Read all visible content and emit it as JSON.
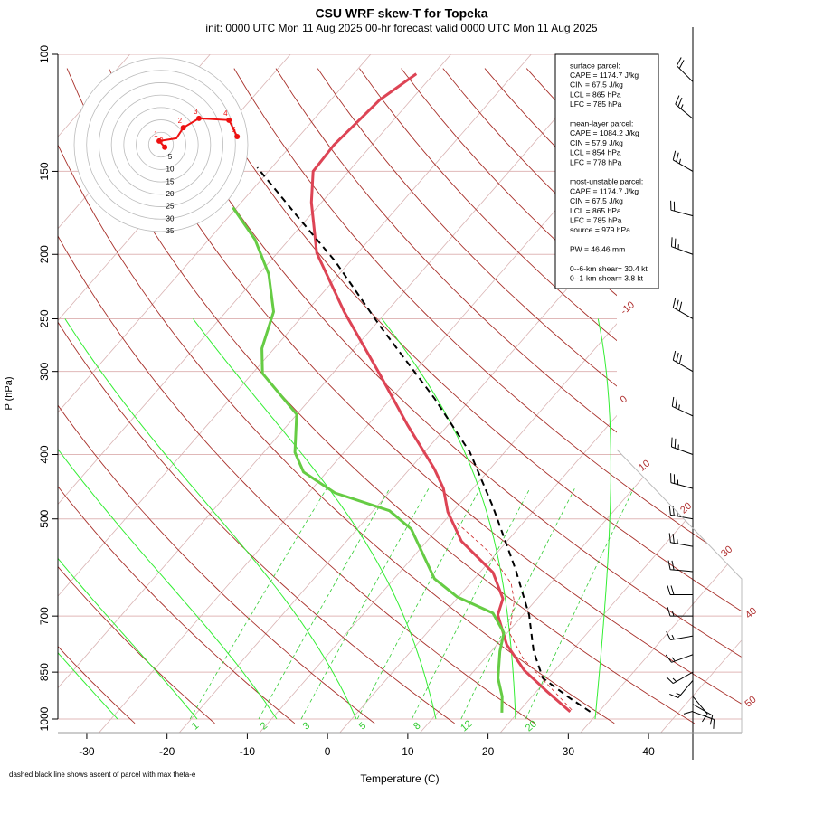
{
  "chart_data": {
    "type": "skewt",
    "title": "CSU WRF skew-T for Topeka",
    "subtitle": "init: 0000 UTC Mon 11 Aug 2025    00-hr forecast valid 0000 UTC Mon 11 Aug 2025",
    "x_label": "Temperature (C)",
    "y_label": "P (hPa)",
    "footnote": "dashed black line shows ascent of parcel with max theta-e",
    "xlim": [
      -33.6,
      51.6
    ],
    "xticks": [
      -30,
      -20,
      -10,
      0,
      10,
      20,
      30,
      40
    ],
    "ylim": [
      1000,
      100
    ],
    "yticks": [
      100,
      150,
      200,
      250,
      300,
      400,
      500,
      700,
      850,
      1000
    ],
    "log_y": true,
    "isotherm_labels": [
      -10,
      0,
      10,
      20,
      30,
      40,
      50
    ],
    "mixing_ratio_labels": [
      1,
      2,
      3,
      5,
      8,
      12,
      20
    ],
    "series": [
      {
        "color": "#dd4455",
        "dash": false,
        "width": 3,
        "pressure": [
          975,
          910,
          845,
          773,
          697,
          659,
          602,
          540,
          488,
          450,
          420,
          361,
          304,
          244,
          199,
          167,
          150,
          137,
          117,
          107
        ],
        "values": [
          29.4,
          24.3,
          19.0,
          13.9,
          9.4,
          8.2,
          4.0,
          -3.5,
          -8.5,
          -11.7,
          -15.1,
          -23.4,
          -32.4,
          -44.1,
          -54.2,
          -60.6,
          -63.9,
          -64.3,
          -63.7,
          -62.1
        ]
      },
      {
        "color": "#66cc44",
        "dash": false,
        "width": 3,
        "pressure": [
          978,
          925,
          868,
          791,
          742,
          693,
          655,
          615,
          518,
          486,
          457,
          425,
          397,
          348,
          302,
          277,
          244,
          214,
          190,
          170
        ],
        "values": [
          21.0,
          19.2,
          16.6,
          13.8,
          12.2,
          8.6,
          2.3,
          -2.6,
          -11.1,
          -15.9,
          -24.7,
          -31.0,
          -34.3,
          -38.4,
          -47.3,
          -50.2,
          -52.9,
          -57.8,
          -63.4,
          -69.8
        ]
      },
      {
        "color": "#000000",
        "dash": true,
        "width": 2,
        "pressure": [
          975,
          930,
          868,
          791,
          697,
          596,
          479,
          397,
          329,
          256,
          205,
          176,
          148
        ],
        "values": [
          31.9,
          27.8,
          22.2,
          18.0,
          13.3,
          6.5,
          -3.5,
          -12.5,
          -23.1,
          -38.1,
          -50.9,
          -60.5,
          -71.3
        ]
      },
      {
        "color": "#cc2222",
        "dash": true,
        "width": 0.8,
        "pressure": [
          507,
          560,
          625,
          665,
          742,
          811,
          882,
          969
        ],
        "values": [
          -6.1,
          1.1,
          7.5,
          9.9,
          12.9,
          17.5,
          23.1,
          29.4
        ]
      }
    ],
    "info": [
      [
        "surface parcel:",
        "CAPE = 1174.7 J/kg",
        "CIN = 67.5 J/kg",
        "LCL = 865 hPa",
        "LFC = 785 hPa"
      ],
      [
        "mean-layer parcel:",
        "CAPE = 1084.2 J/kg",
        "CIN = 57.9 J/kg",
        "LCL = 854 hPa",
        "LFC = 778 hPa"
      ],
      [
        "most-unstable parcel:",
        "CAPE = 1174.7 J/kg",
        "CIN = 67.5 J/kg",
        "LCL = 865 hPa",
        "LFC = 785 hPa",
        "source = 979 hPa"
      ],
      [
        "PW =  46.46 mm"
      ],
      [
        "0--6-km shear= 30.4 kt",
        "0--1-km shear= 3.8 kt"
      ]
    ],
    "hodograph": {
      "rings": [
        5,
        10,
        15,
        20,
        25,
        30,
        35
      ],
      "u": [
        1.5,
        -0.7,
        6.2,
        9.0,
        15.3,
        27.4,
        30.7
      ],
      "v": [
        -1.0,
        1.5,
        2.6,
        6.9,
        10.6,
        9.9,
        3.3
      ],
      "labels": [
        "0",
        "1",
        null,
        "2",
        "3",
        "4",
        "5"
      ],
      "color": "#ee1111"
    },
    "wind_barbs": {
      "pressure": [
        975,
        950,
        925,
        900,
        875,
        850,
        800,
        750,
        700,
        650,
        600,
        550,
        500,
        450,
        400,
        350,
        300,
        250,
        200,
        175,
        150,
        125,
        110
      ],
      "direction": [
        110,
        120,
        140,
        180,
        220,
        240,
        250,
        260,
        270,
        270,
        275,
        280,
        280,
        285,
        290,
        295,
        300,
        300,
        290,
        285,
        300,
        310,
        315
      ],
      "speed": [
        10,
        10,
        10,
        10,
        15,
        15,
        15,
        15,
        15,
        20,
        20,
        25,
        25,
        25,
        25,
        25,
        30,
        30,
        25,
        20,
        25,
        25,
        20
      ]
    }
  }
}
